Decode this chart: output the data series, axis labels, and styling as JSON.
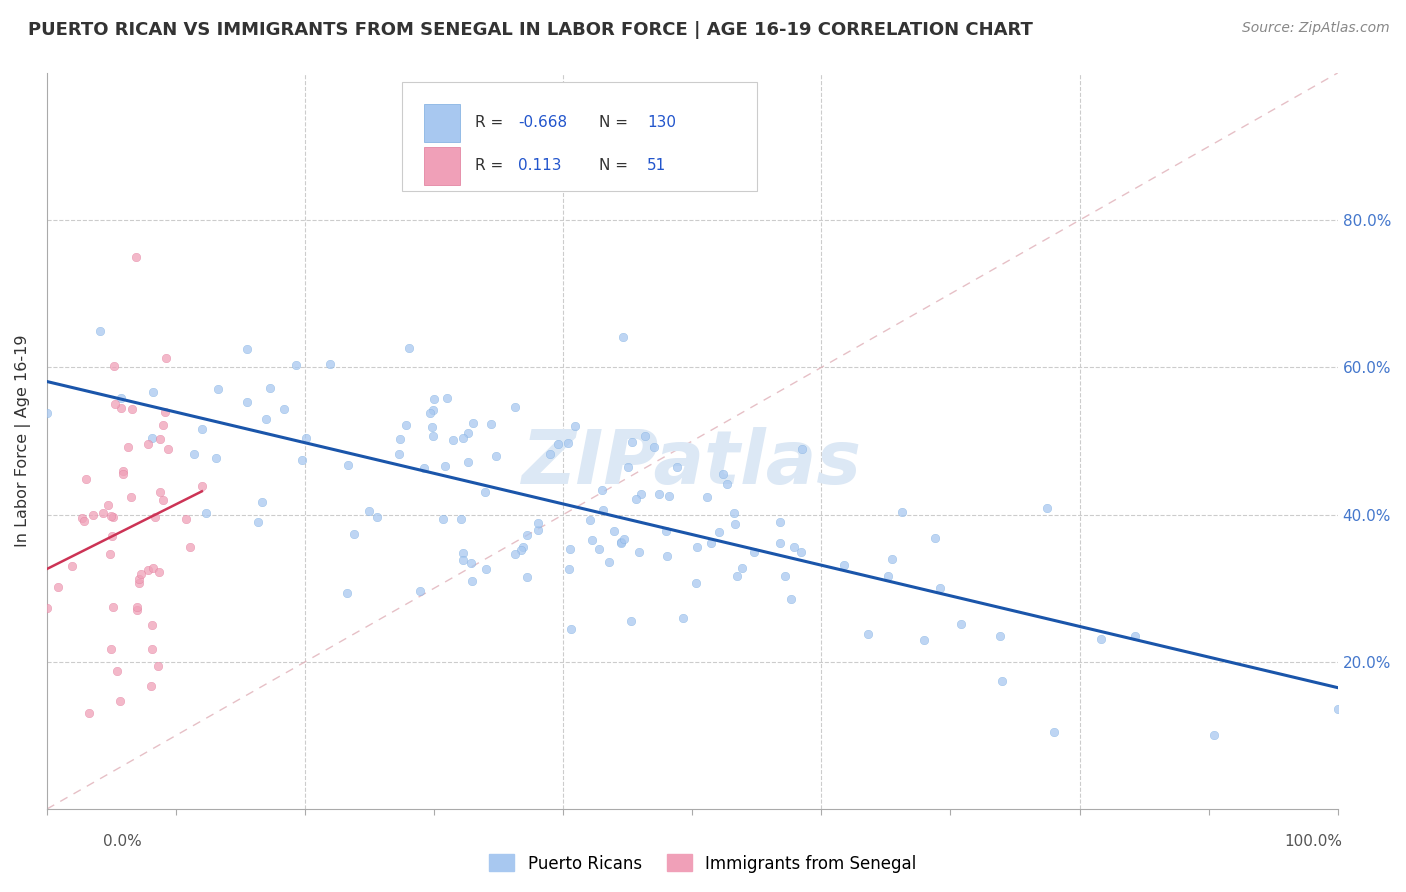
{
  "title": "PUERTO RICAN VS IMMIGRANTS FROM SENEGAL IN LABOR FORCE | AGE 16-19 CORRELATION CHART",
  "source": "Source: ZipAtlas.com",
  "ylabel": "In Labor Force | Age 16-19",
  "color_blue": "#a8c8f0",
  "color_pink": "#f0a0b8",
  "color_blue_line": "#1a55aa",
  "color_pink_line": "#cc3355",
  "color_diagonal": "#e8b0b8",
  "color_right_labels": "#4477cc",
  "R_blue": -0.668,
  "N_blue": 130,
  "R_pink": 0.113,
  "N_pink": 51,
  "watermark": "ZIPatlas",
  "legend_label_blue": "Puerto Ricans",
  "legend_label_pink": "Immigrants from Senegal",
  "title_fontsize": 13,
  "source_fontsize": 10,
  "scatter_size": 38,
  "scatter_alpha": 0.75
}
